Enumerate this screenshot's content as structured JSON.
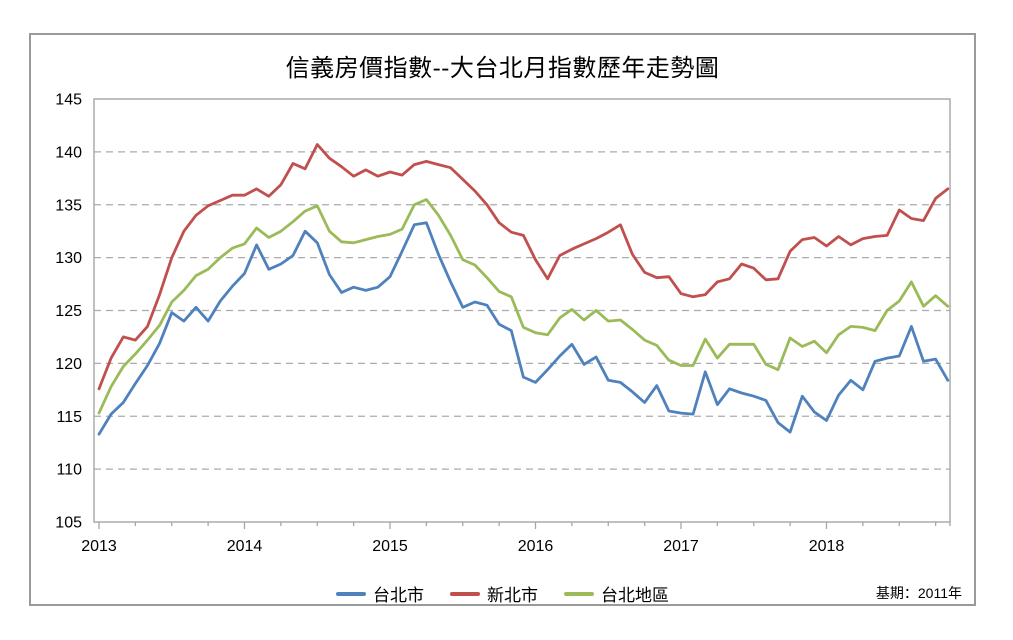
{
  "chart": {
    "title": "信義房價指數--大台北月指數歷年走勢圖",
    "base_note": "基期：2011年"
  },
  "chart_data": {
    "type": "line",
    "title": "信義房價指數--大台北月指數歷年走勢圖",
    "xlabel": "",
    "ylabel": "",
    "x_unit": "month",
    "x_start": "2013-01",
    "x_end": "2018-11",
    "x_tick_labels": [
      "2013",
      "2014",
      "2015",
      "2016",
      "2017",
      "2018"
    ],
    "y_ticks": [
      105,
      110,
      115,
      120,
      125,
      130,
      135,
      140,
      145
    ],
    "ylim": [
      105,
      145
    ],
    "grid": "horizontal-dashed",
    "legend_position": "bottom",
    "annotation": "基期：2011年",
    "series": [
      {
        "id": "taipei-city",
        "name": "台北市",
        "color": "#4F81BD",
        "values": [
          113.3,
          115.2,
          116.3,
          118.1,
          119.8,
          121.9,
          124.8,
          124.0,
          125.3,
          124.0,
          125.9,
          127.3,
          128.5,
          131.2,
          128.9,
          129.4,
          130.2,
          132.5,
          131.4,
          128.4,
          126.7,
          127.2,
          126.9,
          127.2,
          128.2,
          130.6,
          133.1,
          133.3,
          130.3,
          127.7,
          125.3,
          125.8,
          125.5,
          123.7,
          123.1,
          118.7,
          118.2,
          119.4,
          120.7,
          121.8,
          119.9,
          120.6,
          118.4,
          118.2,
          117.3,
          116.3,
          117.9,
          115.5,
          115.3,
          115.2,
          119.2,
          116.1,
          117.6,
          117.2,
          116.9,
          116.5,
          114.4,
          113.5,
          116.9,
          115.4,
          114.6,
          117.0,
          118.4,
          117.5,
          120.2,
          120.5,
          120.7,
          123.5,
          120.2,
          120.4,
          118.4
        ]
      },
      {
        "id": "new-taipei-city",
        "name": "新北市",
        "color": "#C0504D",
        "values": [
          117.6,
          120.5,
          122.5,
          122.2,
          123.5,
          126.5,
          130.0,
          132.5,
          134.0,
          134.9,
          135.4,
          135.9,
          135.9,
          136.5,
          135.8,
          136.9,
          138.9,
          138.4,
          140.7,
          139.4,
          138.6,
          137.7,
          138.3,
          137.7,
          138.1,
          137.8,
          138.8,
          139.1,
          138.8,
          138.5,
          137.4,
          136.3,
          135.0,
          133.3,
          132.4,
          132.1,
          129.8,
          128.0,
          130.2,
          130.8,
          131.3,
          131.8,
          132.4,
          133.1,
          130.3,
          128.6,
          128.1,
          128.2,
          126.6,
          126.3,
          126.5,
          127.7,
          128.0,
          129.4,
          129.0,
          127.9,
          128.0,
          130.6,
          131.7,
          131.9,
          131.1,
          132.0,
          131.2,
          131.8,
          132.0,
          132.1,
          134.5,
          133.7,
          133.5,
          135.6,
          136.5
        ]
      },
      {
        "id": "taipei-area",
        "name": "台北地區",
        "color": "#9BBB59",
        "values": [
          115.3,
          117.8,
          119.7,
          120.9,
          122.2,
          123.6,
          125.8,
          126.9,
          128.3,
          128.9,
          130.0,
          130.9,
          131.3,
          132.8,
          131.9,
          132.5,
          133.4,
          134.4,
          134.9,
          132.5,
          131.5,
          131.4,
          131.7,
          132.0,
          132.2,
          132.7,
          135.0,
          135.5,
          134.0,
          132.1,
          129.8,
          129.3,
          128.1,
          126.8,
          126.3,
          123.4,
          122.9,
          122.7,
          124.3,
          125.1,
          124.1,
          125.0,
          124.0,
          124.1,
          123.2,
          122.2,
          121.7,
          120.3,
          119.8,
          119.8,
          122.3,
          120.5,
          121.8,
          121.8,
          121.8,
          119.9,
          119.4,
          122.4,
          121.6,
          122.1,
          121.0,
          122.7,
          123.5,
          123.4,
          123.1,
          125.0,
          125.9,
          127.7,
          125.4,
          126.4,
          125.4
        ]
      }
    ],
    "styles": {
      "gridline_color": "#ABABAB",
      "plot_border_color": "#A6A6A6",
      "frame_border_color": "#9A9A9A"
    }
  }
}
